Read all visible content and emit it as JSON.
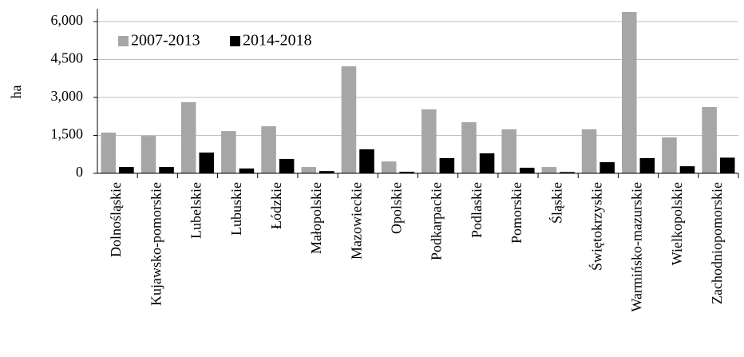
{
  "chart_data": {
    "type": "bar",
    "y_label": "ha",
    "categories": [
      "Dolnośląskie",
      "Kujawsko-pomorskie",
      "Lubelskie",
      "Lubuskie",
      "Łódzkie",
      "Małopolskie",
      "Mazowieckie",
      "Opolskie",
      "Podkarpackie",
      "Podlaskie",
      "Pomorskie",
      "Śląskie",
      "Świętokrzyskie",
      "Warmińsko-mazurskie",
      "Wielkopolskie",
      "Zachodniopomorskie"
    ],
    "series": [
      {
        "name": "2007-2013",
        "color": "#a6a6a6",
        "values": [
          1610,
          1480,
          2810,
          1670,
          1860,
          250,
          4230,
          470,
          2530,
          2020,
          1740,
          250,
          1740,
          6380,
          1420,
          2620
        ]
      },
      {
        "name": "2014-2018",
        "color": "#000000",
        "values": [
          250,
          250,
          820,
          190,
          570,
          90,
          950,
          60,
          600,
          790,
          220,
          50,
          440,
          600,
          280,
          620
        ]
      }
    ],
    "ylim": [
      0,
      6500
    ],
    "yticks": [
      0,
      {
        "value": 1500,
        "label": "1,500"
      },
      {
        "value": 3000,
        "label": "3,000"
      },
      {
        "value": 4500,
        "label": "4,500"
      },
      {
        "value": 6000,
        "label": "6,000"
      }
    ],
    "grid": true,
    "legend": "top-left"
  }
}
